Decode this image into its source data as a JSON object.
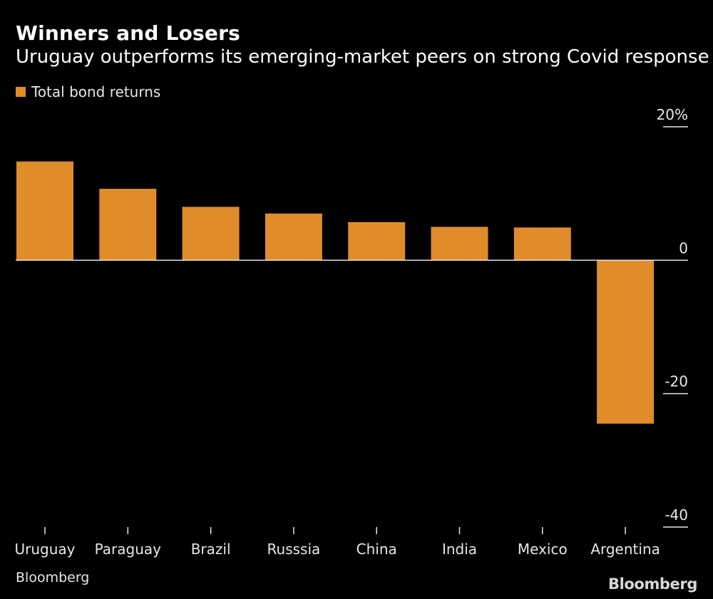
{
  "header": {
    "title": "Winners and Losers",
    "subtitle": "Uruguay outperforms its emerging-market peers on strong Covid response"
  },
  "legend": {
    "label": "Total bond returns"
  },
  "footer": {
    "source": "Bloomberg",
    "brand": "Bloomberg"
  },
  "colors": {
    "bar": "#e08c2a",
    "background": "#000000",
    "axis": "#e6e6e6"
  },
  "chart_data": {
    "type": "bar",
    "title": "Winners and Losers",
    "subtitle": "Uruguay outperforms its emerging-market peers on strong Covid response",
    "categories": [
      "Uruguay",
      "Paraguay",
      "Brazil",
      "Russsia",
      "China",
      "India",
      "Mexico",
      "Argentina"
    ],
    "series": [
      {
        "name": "Total bond returns",
        "values": [
          14.8,
          10.7,
          8.0,
          7.0,
          5.7,
          5.0,
          4.9,
          -24.5
        ]
      }
    ],
    "ylim": [
      -40,
      20
    ],
    "yticks": [
      20,
      0,
      -20,
      -40
    ],
    "ytick_labels": [
      "20%",
      "0",
      "-20",
      "-40"
    ],
    "xlabel": "",
    "ylabel": "",
    "legend_position": "top-left",
    "grid": false
  }
}
